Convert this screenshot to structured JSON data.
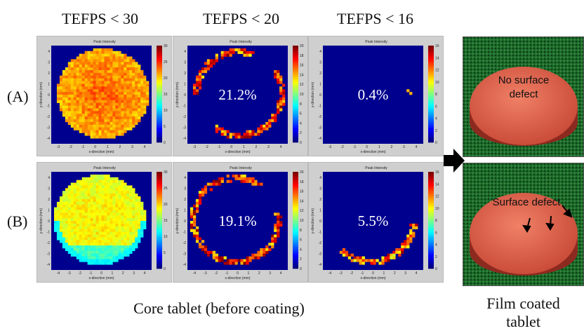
{
  "headers": [
    "TEFPS < 30",
    "TEFPS < 20",
    "TEFPS < 16"
  ],
  "rows": [
    {
      "label": "(A)",
      "percentages": [
        "",
        "21.2%",
        "0.4%"
      ]
    },
    {
      "label": "(B)",
      "percentages": [
        "",
        "19.1%",
        "5.5%"
      ]
    }
  ],
  "panel_title": "Peak Intensity",
  "x_axis_label": "x-direction (mm)",
  "y_axis_label": "y-direction (mm)",
  "x_ticks_A": [
    "-3",
    "-2",
    "-1",
    "0",
    "1",
    "2",
    "3",
    "4"
  ],
  "x_ticks_B": [
    "-4",
    "-3",
    "-2",
    "-1",
    "0",
    "1",
    "2",
    "3",
    "4"
  ],
  "y_ticks": [
    "4",
    "3",
    "2",
    "1",
    "0",
    "-1",
    "-2",
    "-3",
    "-4"
  ],
  "colorbar_ticks": [
    [
      "30",
      "25",
      "20",
      "15",
      "10",
      "5",
      "0"
    ],
    [
      "20",
      "18",
      "16",
      "14",
      "12",
      "10",
      "8",
      "6",
      "4",
      "2",
      "0"
    ],
    [
      "16",
      "14",
      "12",
      "10",
      "8",
      "6",
      "4",
      "2",
      "0"
    ]
  ],
  "photo_top_text": [
    "No surface",
    "defect"
  ],
  "photo_bottom_text": "Surface defect",
  "caption_left": "Core tablet (before coating)",
  "caption_right": [
    "Film coated",
    "tablet"
  ],
  "colors": {
    "plot_bg": "#00008f",
    "panel_bg": "#cfcfcf",
    "tablet": "#d95a48",
    "fabric": "#1c6b2a"
  }
}
